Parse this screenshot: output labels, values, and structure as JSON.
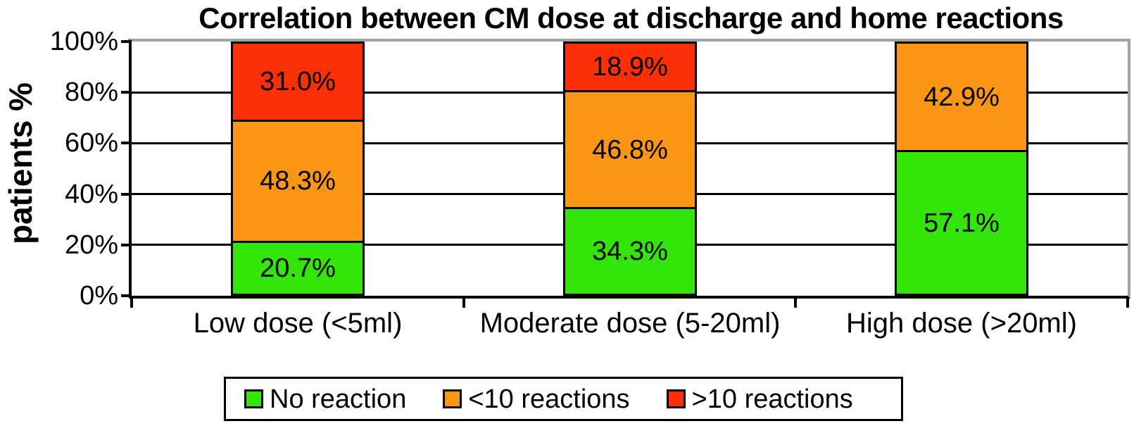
{
  "title": "Correlation between CM dose at discharge and home reactions",
  "chart_data": {
    "type": "bar",
    "stacked": true,
    "title": "Correlation between CM dose at discharge and home reactions",
    "ylabel": "patients %",
    "xlabel": "",
    "ylim": [
      0,
      100
    ],
    "grid": true,
    "legend_position": "bottom",
    "categories": [
      "Low dose (<5ml)",
      "Moderate dose (5-20ml)",
      "High dose (>20ml)"
    ],
    "series": [
      {
        "name": "No reaction",
        "color": "#33E60A",
        "values": [
          20.7,
          34.3,
          57.1
        ],
        "labels": [
          "20.7%",
          "34.3%",
          "57.1%"
        ]
      },
      {
        "name": "<10 reactions",
        "color": "#FA9614",
        "values": [
          48.3,
          46.8,
          42.9
        ],
        "labels": [
          "48.3%",
          "46.8%",
          "42.9%"
        ]
      },
      {
        "name": ">10 reactions",
        "color": "#FB2F05",
        "values": [
          31.0,
          18.9,
          0
        ],
        "labels": [
          "31.0%",
          "18.9%",
          ""
        ]
      }
    ],
    "y_ticks": [
      {
        "label": "0%",
        "value": 0
      },
      {
        "label": "20%",
        "value": 20
      },
      {
        "label": "40%",
        "value": 40
      },
      {
        "label": "60%",
        "value": 60
      },
      {
        "label": "80%",
        "value": 80
      },
      {
        "label": "100%",
        "value": 100
      }
    ]
  },
  "colors": {
    "no_reaction_green": "#33E60A",
    "lt10_reactions_orange": "#FA9614",
    "gt10_reactions_red": "#FB2F05",
    "plot_top_right_border_gray": "#9BA5A8",
    "axis_black": "#000000",
    "background": "#FFFFFF"
  }
}
